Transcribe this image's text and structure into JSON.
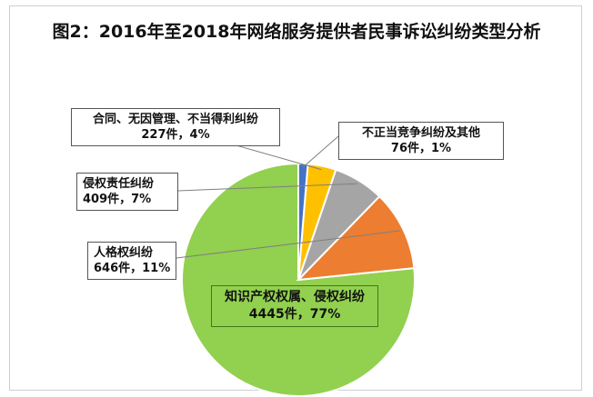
{
  "title": "图2：2016年至2018年网络服务提供者民事诉讼纠纷类型分析",
  "chart_data": {
    "type": "pie",
    "title": "图2：2016年至2018年网络服务提供者民事诉讼纠纷类型分析",
    "slices": [
      {
        "label": "知识产权权属、侵权纠纷",
        "value": 4445,
        "value_text": "4445件，77%",
        "percent": 77,
        "color": "#92D050"
      },
      {
        "label": "人格权纠纷",
        "value": 646,
        "value_text": "646件，11%",
        "percent": 11,
        "color": "#ED7D31"
      },
      {
        "label": "侵权责任纠纷",
        "value": 409,
        "value_text": "409件，7%",
        "percent": 7,
        "color": "#A5A5A5"
      },
      {
        "label": "合同、无因管理、不当得利纠纷",
        "value": 227,
        "value_text": "227件，4%",
        "percent": 4,
        "color": "#FFC000"
      },
      {
        "label": "不正当竞争纠纷及其他",
        "value": 76,
        "value_text": "76件，1%",
        "percent": 1,
        "color": "#4472C4"
      }
    ]
  }
}
